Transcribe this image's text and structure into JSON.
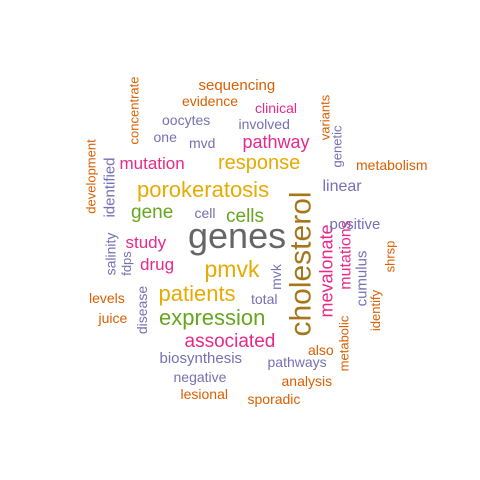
{
  "palette": {
    "orange": "#d95f02",
    "purple": "#7570b3",
    "magenta": "#e7298a",
    "green": "#66a61e",
    "gold": "#e6ab02",
    "brown": "#a6761d",
    "gray": "#666666"
  },
  "words": [
    {
      "text": "genes",
      "color": "gray",
      "weight": 10,
      "rotated": false
    },
    {
      "text": "cholesterol",
      "color": "brown",
      "weight": 9,
      "rotated": true
    },
    {
      "text": "porokeratosis",
      "color": "gold",
      "weight": 8,
      "rotated": false
    },
    {
      "text": "pmvk",
      "color": "gold",
      "weight": 7,
      "rotated": false
    },
    {
      "text": "patients",
      "color": "gold",
      "weight": 7,
      "rotated": false
    },
    {
      "text": "expression",
      "color": "green",
      "weight": 7,
      "rotated": false
    },
    {
      "text": "response",
      "color": "gold",
      "weight": 6,
      "rotated": false
    },
    {
      "text": "mevalonate",
      "color": "magenta",
      "weight": 6,
      "rotated": true
    },
    {
      "text": "associated",
      "color": "magenta",
      "weight": 6,
      "rotated": false
    },
    {
      "text": "pathway",
      "color": "magenta",
      "weight": 5,
      "rotated": false
    },
    {
      "text": "gene",
      "color": "green",
      "weight": 5,
      "rotated": false
    },
    {
      "text": "cells",
      "color": "green",
      "weight": 5,
      "rotated": false
    },
    {
      "text": "mutations",
      "color": "magenta",
      "weight": 5,
      "rotated": true
    },
    {
      "text": "mutation",
      "color": "magenta",
      "weight": 4,
      "rotated": false
    },
    {
      "text": "study",
      "color": "magenta",
      "weight": 4,
      "rotated": false
    },
    {
      "text": "drug",
      "color": "magenta",
      "weight": 4,
      "rotated": false
    },
    {
      "text": "cumulus",
      "color": "purple",
      "weight": 4,
      "rotated": true
    },
    {
      "text": "linear",
      "color": "purple",
      "weight": 3,
      "rotated": false
    },
    {
      "text": "positive",
      "color": "purple",
      "weight": 3,
      "rotated": false
    },
    {
      "text": "biosynthesis",
      "color": "purple",
      "weight": 3,
      "rotated": false
    },
    {
      "text": "disease",
      "color": "purple",
      "weight": 3,
      "rotated": true
    },
    {
      "text": "identified",
      "color": "purple",
      "weight": 3,
      "rotated": true
    },
    {
      "text": "involved",
      "color": "purple",
      "weight": 3,
      "rotated": false
    },
    {
      "text": "oocytes",
      "color": "purple",
      "weight": 3,
      "rotated": false
    },
    {
      "text": "mvd",
      "color": "purple",
      "weight": 3,
      "rotated": false
    },
    {
      "text": "pathways",
      "color": "purple",
      "weight": 3,
      "rotated": false
    },
    {
      "text": "negative",
      "color": "purple",
      "weight": 3,
      "rotated": false
    },
    {
      "text": "salinity",
      "color": "purple",
      "weight": 3,
      "rotated": true
    },
    {
      "text": "clinical",
      "color": "magenta",
      "weight": 3,
      "rotated": false
    },
    {
      "text": "total",
      "color": "purple",
      "weight": 2,
      "rotated": false
    },
    {
      "text": "cell",
      "color": "purple",
      "weight": 2,
      "rotated": false
    },
    {
      "text": "one",
      "color": "purple",
      "weight": 2,
      "rotated": false
    },
    {
      "text": "mvk",
      "color": "purple",
      "weight": 2,
      "rotated": true
    },
    {
      "text": "genetic",
      "color": "purple",
      "weight": 2,
      "rotated": true
    },
    {
      "text": "fdps",
      "color": "purple",
      "weight": 2,
      "rotated": true
    },
    {
      "text": "sequencing",
      "color": "orange",
      "weight": 2,
      "rotated": false
    },
    {
      "text": "evidence",
      "color": "orange",
      "weight": 2,
      "rotated": false
    },
    {
      "text": "concentrate",
      "color": "orange",
      "weight": 2,
      "rotated": true
    },
    {
      "text": "variants",
      "color": "orange",
      "weight": 2,
      "rotated": true
    },
    {
      "text": "development",
      "color": "orange",
      "weight": 2,
      "rotated": true
    },
    {
      "text": "metabolism",
      "color": "orange",
      "weight": 2,
      "rotated": false
    },
    {
      "text": "shrsp",
      "color": "orange",
      "weight": 2,
      "rotated": true
    },
    {
      "text": "identify",
      "color": "orange",
      "weight": 2,
      "rotated": true
    },
    {
      "text": "levels",
      "color": "orange",
      "weight": 2,
      "rotated": false
    },
    {
      "text": "juice",
      "color": "orange",
      "weight": 2,
      "rotated": false
    },
    {
      "text": "also",
      "color": "orange",
      "weight": 2,
      "rotated": false
    },
    {
      "text": "metabolic",
      "color": "orange",
      "weight": 2,
      "rotated": true
    },
    {
      "text": "analysis",
      "color": "orange",
      "weight": 2,
      "rotated": false
    },
    {
      "text": "lesional",
      "color": "orange",
      "weight": 2,
      "rotated": false
    },
    {
      "text": "sporadic",
      "color": "orange",
      "weight": 2,
      "rotated": false
    }
  ]
}
